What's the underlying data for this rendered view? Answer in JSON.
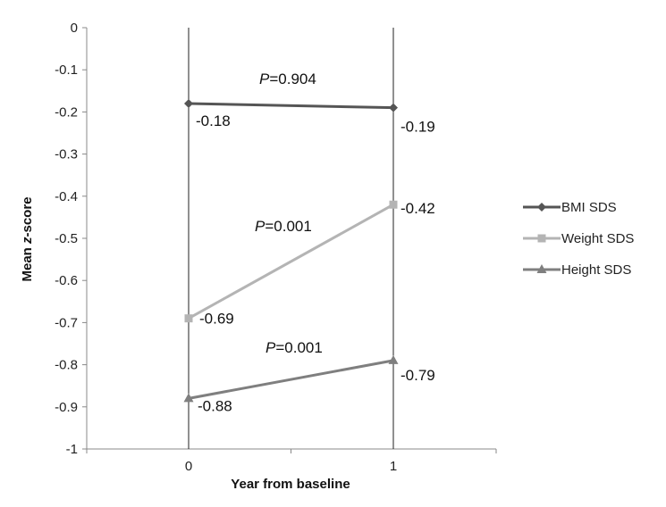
{
  "chart_data": {
    "type": "line",
    "title": "",
    "xlabel": "Year from baseline",
    "ylabel_parts": [
      "Mean ",
      "z",
      "-score"
    ],
    "x": [
      0,
      1
    ],
    "x_tick_labels": [
      "0",
      "1"
    ],
    "y_tick_labels": [
      "0",
      "-0.1",
      "-0.2",
      "-0.3",
      "-0.4",
      "-0.5",
      "-0.6",
      "-0.7",
      "-0.8",
      "-0.9",
      "-1"
    ],
    "ylim": [
      -1,
      0
    ],
    "grid": false,
    "legend_position": "right",
    "series": [
      {
        "name": "BMI SDS",
        "values": [
          -0.18,
          -0.19
        ],
        "labels": [
          "-0.18",
          "-0.19"
        ],
        "color": "#555555",
        "marker": "diamond"
      },
      {
        "name": "Weight SDS",
        "values": [
          -0.69,
          -0.42
        ],
        "labels": [
          "-0.69",
          "-0.42"
        ],
        "color": "#b4b4b4",
        "marker": "square"
      },
      {
        "name": "Height SDS",
        "values": [
          -0.88,
          -0.79
        ],
        "labels": [
          "-0.88",
          "-0.79"
        ],
        "color": "#7f7f7f",
        "marker": "triangle"
      }
    ],
    "annotations": [
      {
        "p": "P",
        "rest": "=0.904",
        "series": "BMI SDS"
      },
      {
        "p": "P",
        "rest": "=0.001",
        "series": "Weight SDS"
      },
      {
        "p": "P",
        "rest": "=0.001",
        "series": "Height SDS"
      }
    ]
  }
}
